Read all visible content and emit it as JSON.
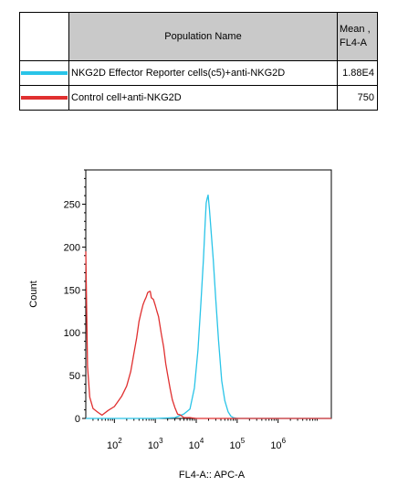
{
  "legend_table": {
    "header_name": "Population Name",
    "header_mean_line1": "Mean ,",
    "header_mean_line2": "FL4-A",
    "rows": [
      {
        "name": "NKG2D Effector Reporter cells(c5)+anti-NKG2D",
        "mean": "1.88E4",
        "color": "#29c4e8"
      },
      {
        "name": "Control cell+anti-NKG2D",
        "mean": "750",
        "color": "#e03030"
      }
    ]
  },
  "chart_data": {
    "type": "line",
    "xlabel": "FL4-A:: APC-A",
    "ylabel": "Count",
    "x_scale": "log",
    "xlim": [
      20,
      20000000
    ],
    "ylim": [
      0,
      290
    ],
    "y_ticks": [
      0,
      50,
      100,
      150,
      200,
      250
    ],
    "x_ticks": [
      {
        "value": 100,
        "base": "10",
        "exp": "2"
      },
      {
        "value": 1000,
        "base": "10",
        "exp": "3"
      },
      {
        "value": 10000,
        "base": "10",
        "exp": "4"
      },
      {
        "value": 100000,
        "base": "10",
        "exp": "5"
      },
      {
        "value": 1000000,
        "base": "10",
        "exp": "6"
      }
    ],
    "series": [
      {
        "name": "NKG2D Effector Reporter cells(c5)+anti-NKG2D",
        "color": "#29c4e8",
        "x": [
          20,
          300,
          1000,
          3000,
          5000,
          7000,
          9000,
          11000,
          13000,
          15000,
          16500,
          17500,
          18500,
          19500,
          21000,
          23000,
          26000,
          30000,
          35000,
          42000,
          50000,
          60000,
          70000,
          80000,
          100000,
          200000,
          20000000
        ],
        "y": [
          0,
          0,
          0,
          1,
          4,
          12,
          35,
          80,
          135,
          185,
          230,
          250,
          258,
          260,
          245,
          220,
          185,
          140,
          90,
          45,
          20,
          8,
          3,
          1,
          0,
          0,
          0
        ]
      },
      {
        "name": "Control cell+anti-NKG2D",
        "color": "#e03030",
        "x": [
          20,
          22,
          25,
          30,
          40,
          50,
          70,
          100,
          150,
          200,
          250,
          300,
          350,
          400,
          450,
          500,
          550,
          600,
          650,
          700,
          750,
          800,
          900,
          1000,
          1100,
          1200,
          1400,
          1600,
          1800,
          2000,
          2300,
          2600,
          3000,
          3500,
          4000,
          5000,
          7000,
          10000,
          20000,
          100000,
          20000000
        ],
        "y": [
          195,
          60,
          25,
          12,
          6,
          5,
          8,
          15,
          25,
          38,
          55,
          75,
          95,
          112,
          125,
          132,
          138,
          142,
          146,
          149,
          147,
          142,
          138,
          132,
          125,
          118,
          100,
          82,
          65,
          50,
          35,
          22,
          12,
          6,
          3,
          1,
          1,
          0,
          0,
          0,
          0
        ]
      }
    ]
  }
}
